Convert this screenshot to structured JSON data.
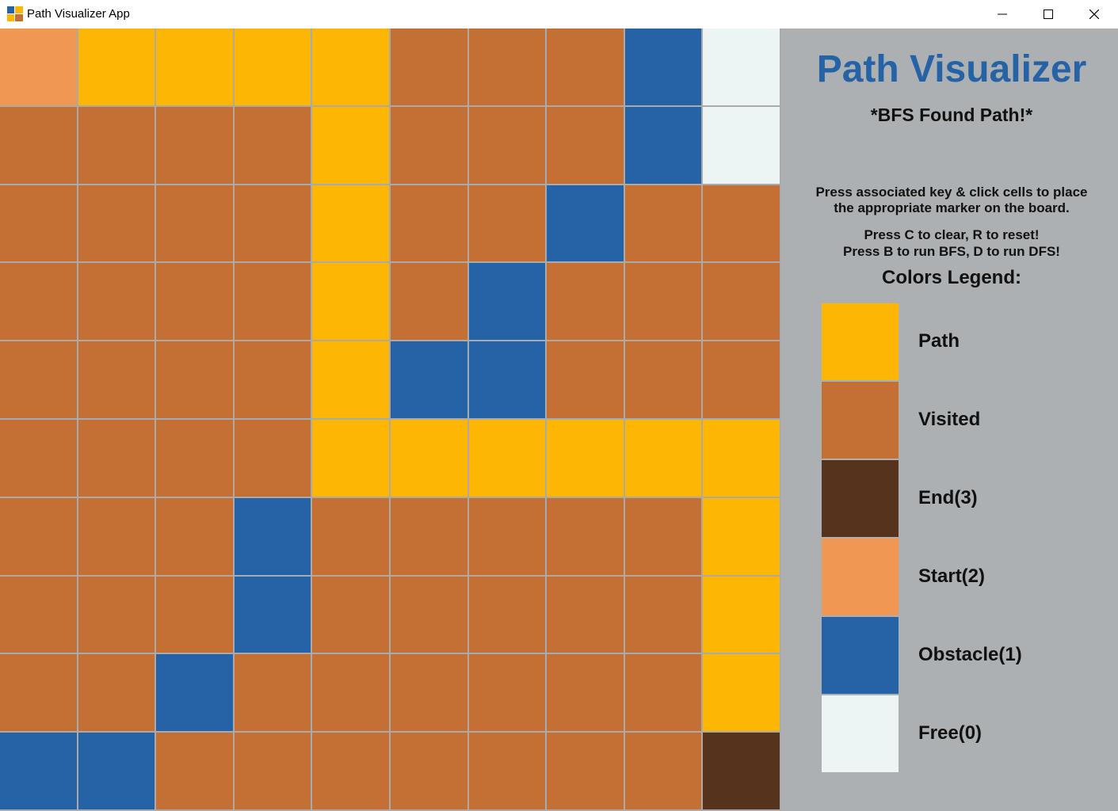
{
  "window": {
    "title": "Path Visualizer App",
    "icon": "app-grid-icon",
    "controls": [
      "minimize-icon",
      "maximize-icon",
      "close-icon"
    ]
  },
  "colors": {
    "path": "#fdb603",
    "visited": "#c47035",
    "end": "#55331d",
    "start": "#ef9753",
    "obstacle": "#2562a6",
    "free": "#ecf5f3",
    "grid_line": "#aaaaaa",
    "sidebar_bg": "#adb0b2",
    "title_color": "#2562a6"
  },
  "board": {
    "rows": 10,
    "cols": 10,
    "cells": [
      [
        "start",
        "path",
        "path",
        "path",
        "path",
        "visited",
        "visited",
        "visited",
        "obstacle",
        "free"
      ],
      [
        "visited",
        "visited",
        "visited",
        "visited",
        "path",
        "visited",
        "visited",
        "visited",
        "obstacle",
        "free"
      ],
      [
        "visited",
        "visited",
        "visited",
        "visited",
        "path",
        "visited",
        "visited",
        "obstacle",
        "visited",
        "visited"
      ],
      [
        "visited",
        "visited",
        "visited",
        "visited",
        "path",
        "visited",
        "obstacle",
        "visited",
        "visited",
        "visited"
      ],
      [
        "visited",
        "visited",
        "visited",
        "visited",
        "path",
        "obstacle",
        "obstacle",
        "visited",
        "visited",
        "visited"
      ],
      [
        "visited",
        "visited",
        "visited",
        "visited",
        "path",
        "path",
        "path",
        "path",
        "path",
        "path"
      ],
      [
        "visited",
        "visited",
        "visited",
        "obstacle",
        "visited",
        "visited",
        "visited",
        "visited",
        "visited",
        "path"
      ],
      [
        "visited",
        "visited",
        "visited",
        "obstacle",
        "visited",
        "visited",
        "visited",
        "visited",
        "visited",
        "path"
      ],
      [
        "visited",
        "visited",
        "obstacle",
        "visited",
        "visited",
        "visited",
        "visited",
        "visited",
        "visited",
        "path"
      ],
      [
        "obstacle",
        "obstacle",
        "visited",
        "visited",
        "visited",
        "visited",
        "visited",
        "visited",
        "visited",
        "end"
      ]
    ]
  },
  "sidebar": {
    "title": "Path Visualizer",
    "status": "*BFS Found Path!*",
    "instructions": [
      "Press associated key & click cells to place",
      "the appropriate marker on the board.",
      "Press C to clear, R to reset!",
      "Press B to run BFS, D to run DFS!"
    ],
    "legend_title": "Colors Legend:",
    "legend": [
      {
        "key": "path",
        "label": "Path"
      },
      {
        "key": "visited",
        "label": "Visited"
      },
      {
        "key": "end",
        "label": "End(3)"
      },
      {
        "key": "start",
        "label": "Start(2)"
      },
      {
        "key": "obstacle",
        "label": "Obstacle(1)"
      },
      {
        "key": "free",
        "label": "Free(0)"
      }
    ]
  }
}
